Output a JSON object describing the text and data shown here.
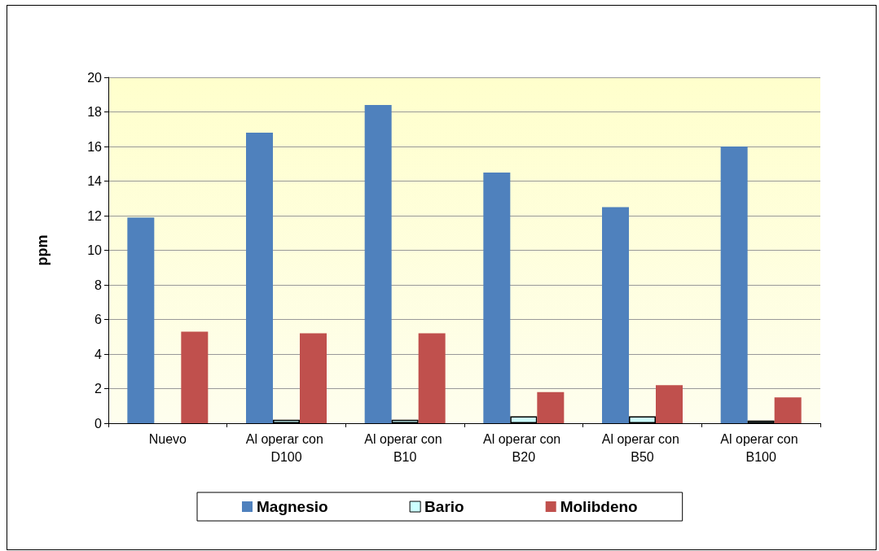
{
  "chart_data": {
    "type": "bar",
    "ylabel": "ppm",
    "categories": [
      "Nuevo",
      "Al operar con D100",
      "Al operar con B10",
      "Al operar con B20",
      "Al operar con B50",
      "Al operar con B100"
    ],
    "series": [
      {
        "name": "Magnesio",
        "color": "#4f81bd",
        "values": [
          11.9,
          16.8,
          18.4,
          14.5,
          12.5,
          16.0
        ]
      },
      {
        "name": "Bario",
        "color": "#ccffff",
        "values": [
          null,
          0.2,
          0.2,
          0.4,
          0.4,
          0.15
        ]
      },
      {
        "name": "Molibdeno",
        "color": "#c0504d",
        "values": [
          5.3,
          5.2,
          5.2,
          1.8,
          2.2,
          1.5
        ]
      }
    ],
    "ylim": [
      0,
      20
    ],
    "yticks": [
      0,
      2,
      4,
      6,
      8,
      10,
      12,
      14,
      16,
      18,
      20
    ],
    "grid": "y",
    "legend": "bottom"
  }
}
